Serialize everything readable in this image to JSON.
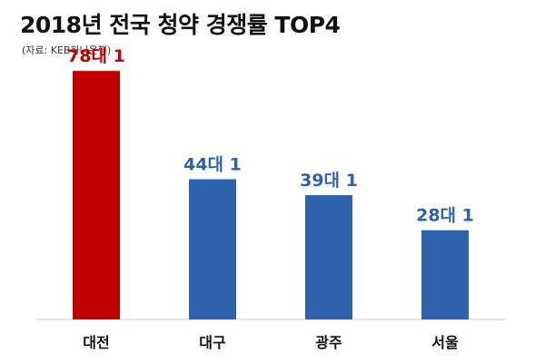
{
  "title": "2018년 전국 청약 경쟁률 TOP4",
  "source": "(자료: KEB하나은행)",
  "colors": {
    "highlight": "#c00000",
    "normal": "#2e62ad"
  },
  "chart_data": {
    "type": "bar",
    "title": "2018년 전국 청약 경쟁률 TOP4",
    "xlabel": "",
    "ylabel": "",
    "ylim": [
      0,
      80
    ],
    "categories": [
      "대전",
      "대구",
      "광주",
      "서울"
    ],
    "values": [
      78,
      44,
      39,
      28
    ],
    "data_labels": [
      "78대 1",
      "44대 1",
      "39대 1",
      "28대 1"
    ],
    "highlight": [
      true,
      false,
      false,
      false
    ],
    "grid": false,
    "legend": "none"
  }
}
